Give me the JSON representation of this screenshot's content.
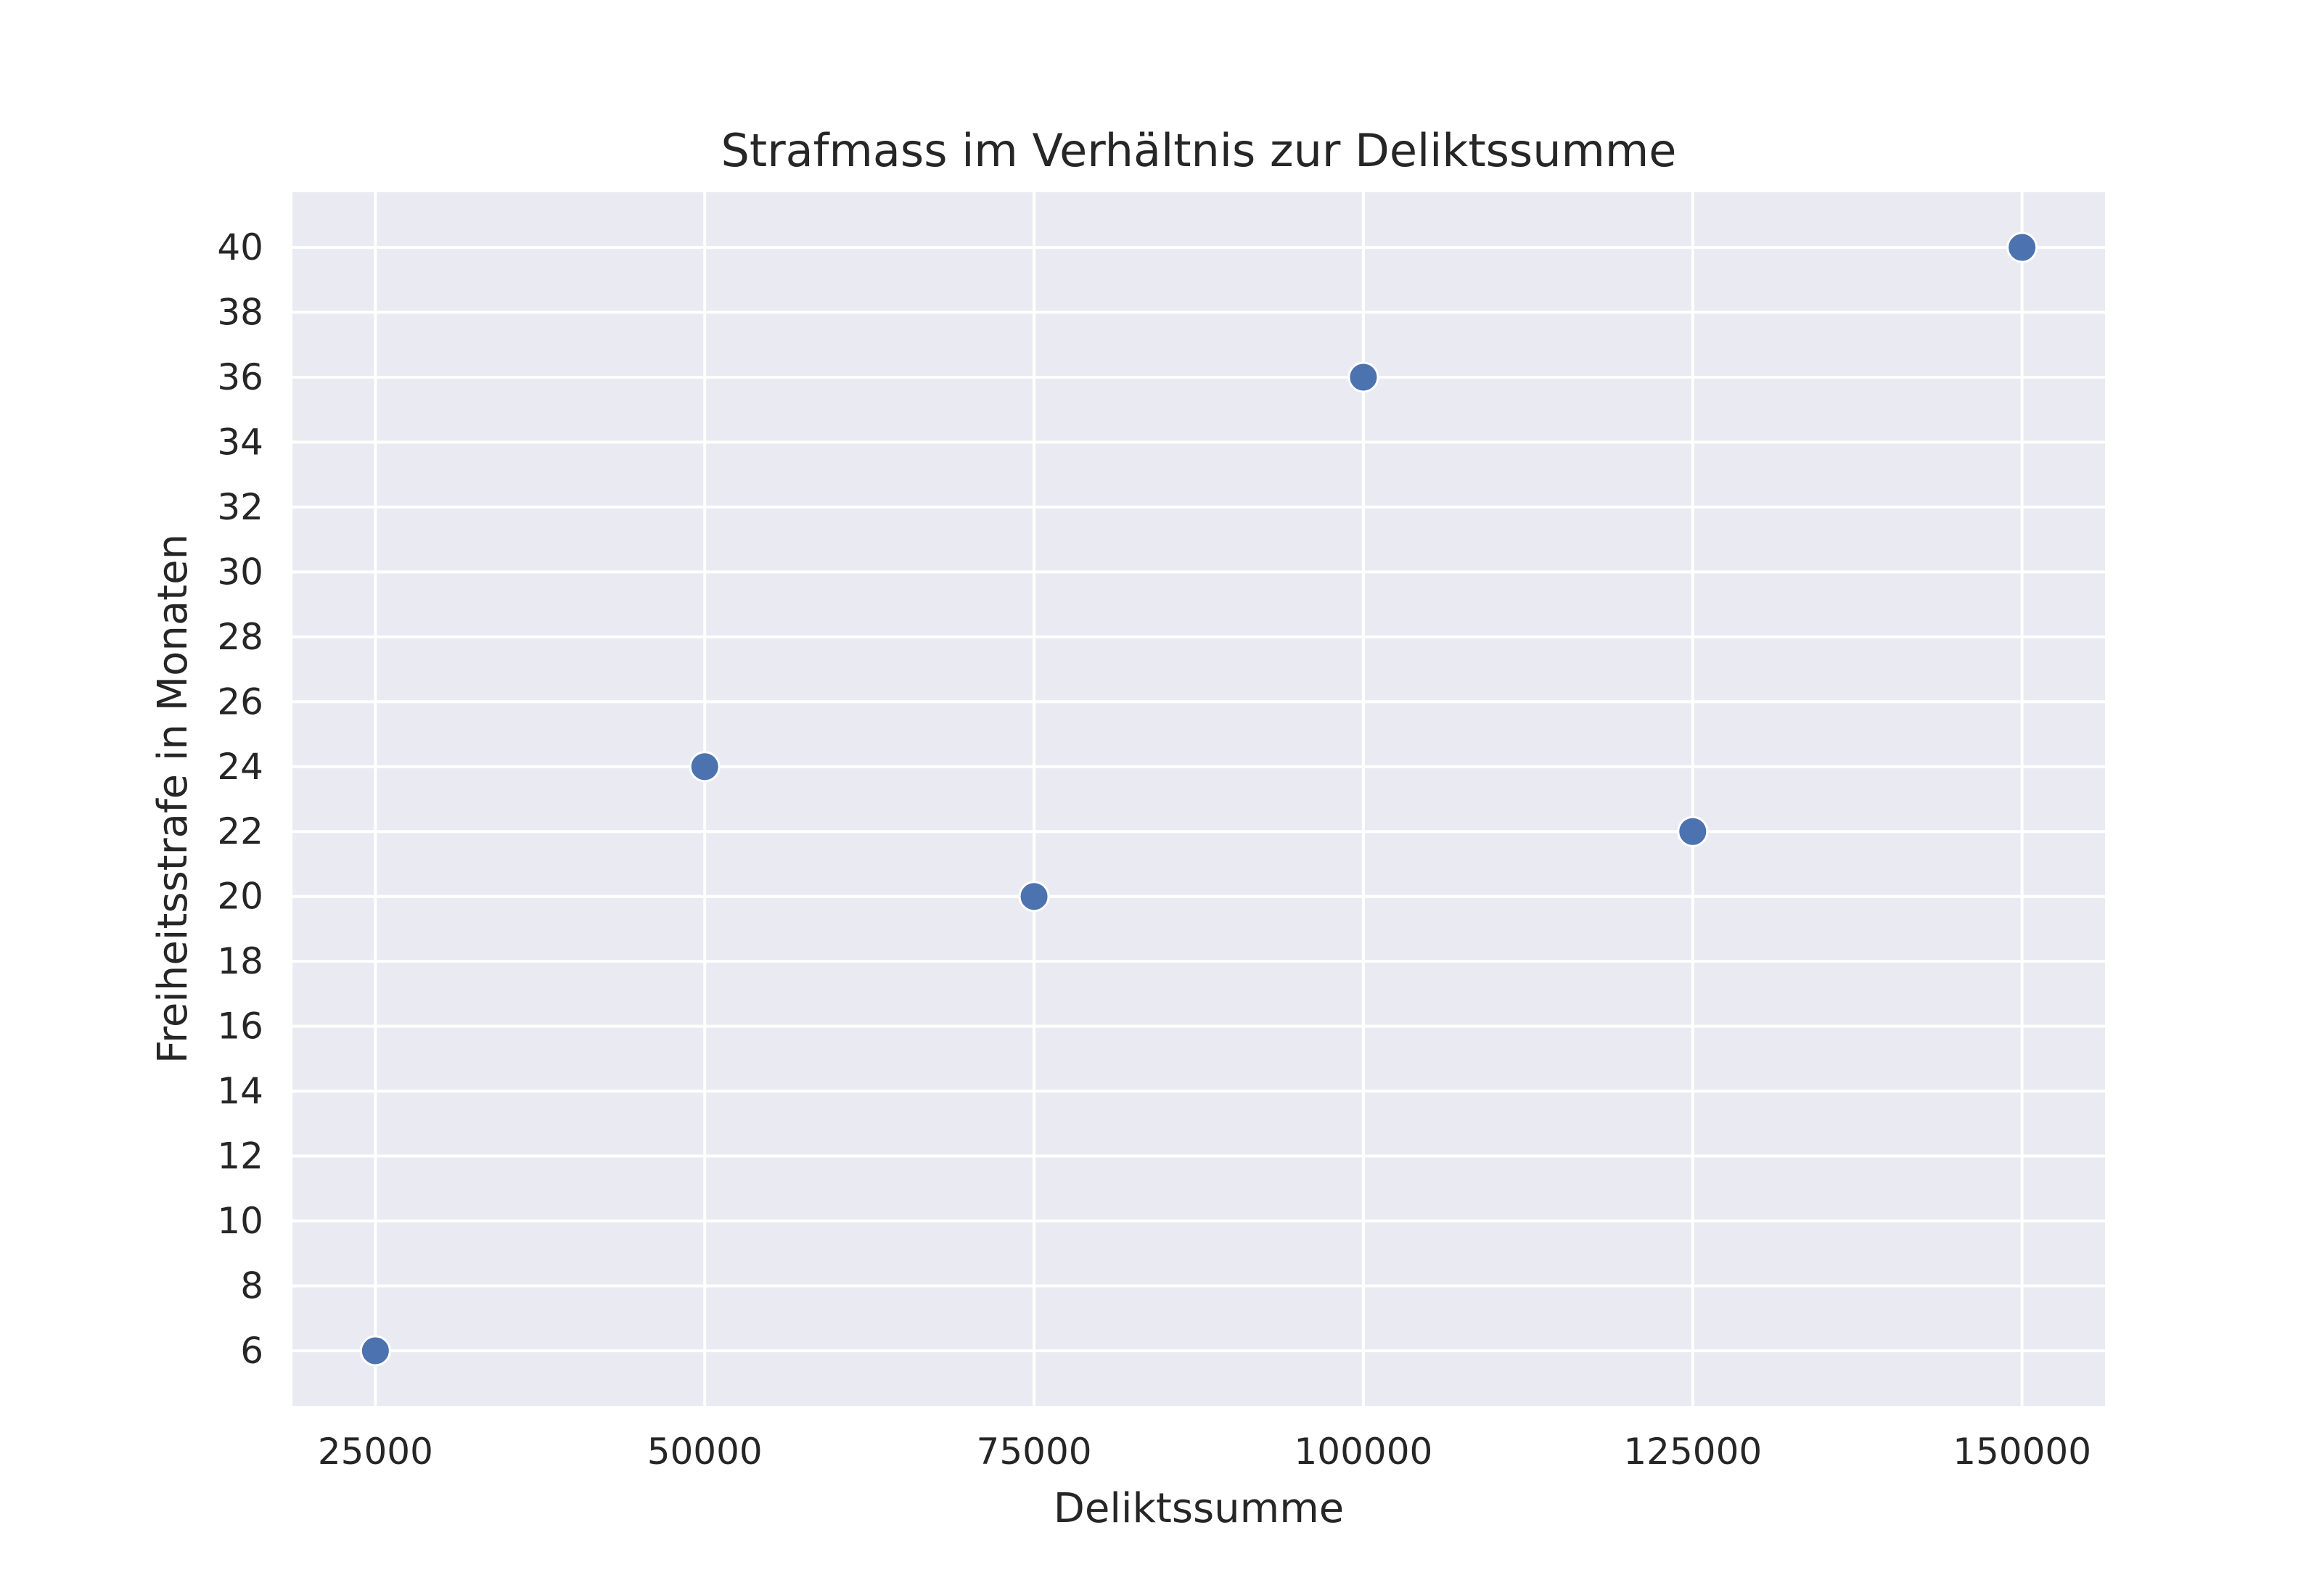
{
  "chart_data": {
    "type": "scatter",
    "title": "Strafmass im Verhältnis zur Deliktssumme",
    "xlabel": "Deliktssumme",
    "ylabel": "Freiheitsstrafe in Monaten",
    "x": [
      25000,
      50000,
      75000,
      100000,
      125000,
      150000
    ],
    "y": [
      6,
      24,
      20,
      36,
      22,
      40
    ],
    "xlim": [
      18700,
      156300
    ],
    "ylim": [
      4.3,
      41.7
    ],
    "xticks": [
      25000,
      50000,
      75000,
      100000,
      125000,
      150000
    ],
    "yticks": [
      6,
      8,
      10,
      12,
      14,
      16,
      18,
      20,
      22,
      24,
      26,
      28,
      30,
      32,
      34,
      36,
      38,
      40
    ],
    "grid": true,
    "legend": "none",
    "colors": {
      "points": "#4c72b0",
      "background": "#eaeaf2",
      "grid": "#ffffff"
    }
  }
}
